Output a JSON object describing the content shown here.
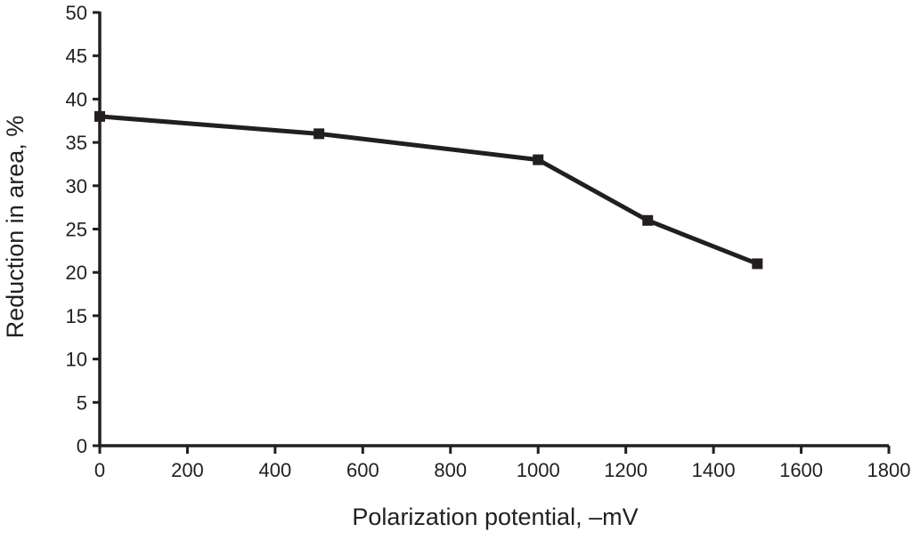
{
  "chart_data": {
    "type": "line",
    "title": "",
    "xlabel": "Polarization potential, –mV",
    "ylabel": "Reduction in area, %",
    "xlim": [
      0,
      1800
    ],
    "ylim": [
      0,
      50
    ],
    "x_ticks": [
      0,
      200,
      400,
      600,
      800,
      1000,
      1200,
      1400,
      1600,
      1800
    ],
    "y_ticks": [
      0,
      5,
      10,
      15,
      20,
      25,
      30,
      35,
      40,
      45,
      50
    ],
    "grid": false,
    "legend": "none",
    "marker": "square",
    "line_color": "#231f20",
    "series": [
      {
        "x": [
          0,
          500,
          1000,
          1250,
          1500
        ],
        "values": [
          38,
          36,
          33,
          26,
          21
        ]
      }
    ]
  }
}
